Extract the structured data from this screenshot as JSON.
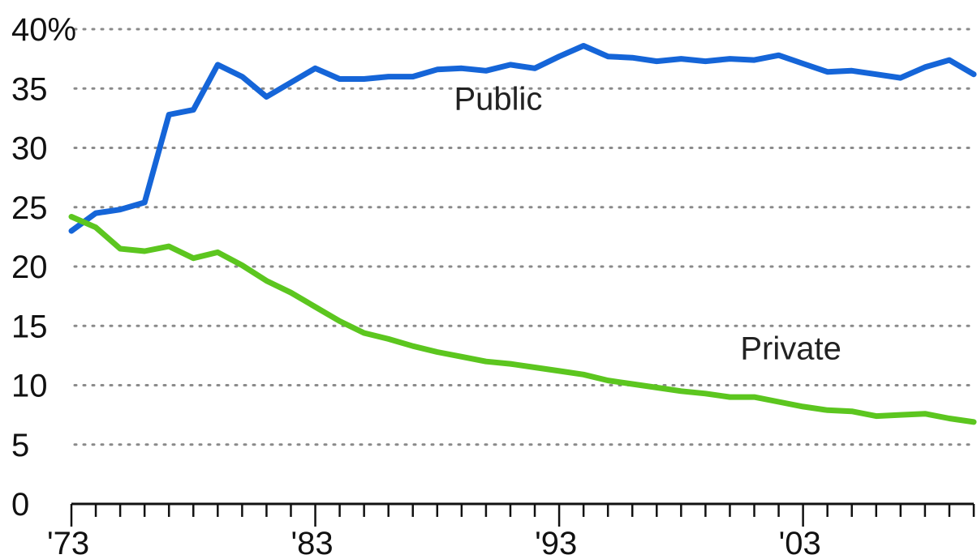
{
  "chart_data": {
    "type": "line",
    "title": "",
    "xlabel": "",
    "ylabel": "",
    "y_unit_suffix": "%",
    "ylim": [
      0,
      40
    ],
    "xlim": [
      1973,
      2010
    ],
    "y_ticks": [
      0,
      5,
      10,
      15,
      20,
      25,
      30,
      35,
      40
    ],
    "y_tick_labels": [
      "0",
      "5",
      "10",
      "15",
      "20",
      "25",
      "30",
      "35",
      "40%"
    ],
    "x_ticks": [
      1973,
      1983,
      1993,
      2003
    ],
    "x_tick_labels": [
      "'73",
      "'83",
      "'93",
      "'03"
    ],
    "grid": "horizontal dotted",
    "x": [
      1973,
      1974,
      1975,
      1976,
      1977,
      1978,
      1979,
      1980,
      1981,
      1982,
      1983,
      1984,
      1985,
      1986,
      1987,
      1988,
      1989,
      1990,
      1991,
      1992,
      1993,
      1994,
      1995,
      1996,
      1997,
      1998,
      1999,
      2000,
      2001,
      2002,
      2003,
      2004,
      2005,
      2006,
      2007,
      2008,
      2009,
      2010
    ],
    "series": [
      {
        "name": "Public",
        "color": "#1565d8",
        "label_year": 1990.5,
        "label_value": 33.2,
        "values": [
          23.0,
          24.5,
          24.8,
          25.4,
          32.8,
          33.2,
          37.0,
          36.0,
          34.3,
          35.5,
          36.7,
          35.8,
          35.8,
          36.0,
          36.0,
          36.6,
          36.7,
          36.5,
          37.0,
          36.7,
          37.7,
          38.6,
          37.7,
          37.6,
          37.3,
          37.5,
          37.3,
          37.5,
          37.4,
          37.8,
          37.1,
          36.4,
          36.5,
          36.2,
          35.9,
          36.8,
          37.4,
          36.2
        ]
      },
      {
        "name": "Private",
        "color": "#5cc61f",
        "label_year": 2002.5,
        "label_value": 12.2,
        "values": [
          24.2,
          23.3,
          21.5,
          21.3,
          21.7,
          20.7,
          21.2,
          20.1,
          18.8,
          17.8,
          16.6,
          15.4,
          14.4,
          13.9,
          13.3,
          12.8,
          12.4,
          12.0,
          11.8,
          11.5,
          11.2,
          10.9,
          10.4,
          10.1,
          9.8,
          9.5,
          9.3,
          9.0,
          9.0,
          8.6,
          8.2,
          7.9,
          7.8,
          7.4,
          7.5,
          7.6,
          7.2,
          6.9
        ]
      }
    ]
  }
}
